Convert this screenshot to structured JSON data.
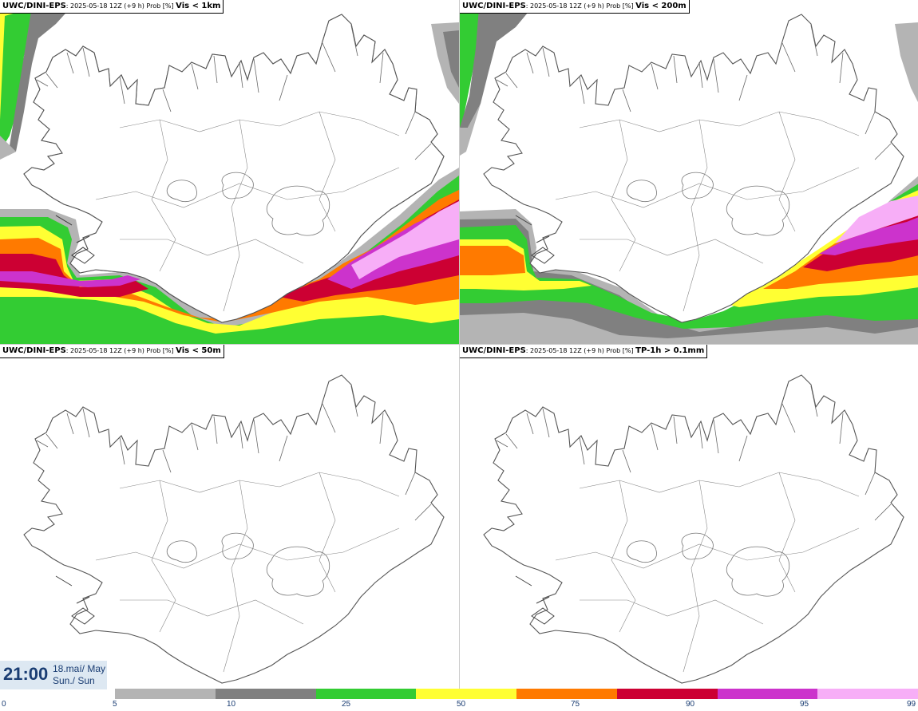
{
  "panels": [
    {
      "model": "UWC/DINI-EPS",
      "meta": ": 2025-05-18 12Z (+9 h) Prob [%] ",
      "field": "Vis < 1km"
    },
    {
      "model": "UWC/DINI-EPS",
      "meta": ": 2025-05-18 12Z (+9 h) Prob [%] ",
      "field": "Vis < 200m"
    },
    {
      "model": "UWC/DINI-EPS",
      "meta": ": 2025-05-18 12Z (+9 h) Prob [%] ",
      "field": "Vis < 50m"
    },
    {
      "model": "UWC/DINI-EPS",
      "meta": ": 2025-05-18 12Z (+9 h) Prob [%] ",
      "field": "TP-1h > 0.1mm"
    }
  ],
  "time": {
    "clock": "21:00",
    "date_line1": "18.maí/ May",
    "date_line2": "Sun./ Sun"
  },
  "colorbar": {
    "ticks": [
      "0",
      "5",
      "10",
      "25",
      "50",
      "75",
      "90",
      "95",
      "99"
    ],
    "colors": [
      "#b4b4b4",
      "#808080",
      "#33cc33",
      "#ffff33",
      "#ff7a00",
      "#cc0033",
      "#cc33cc",
      "#f7aef7"
    ]
  }
}
